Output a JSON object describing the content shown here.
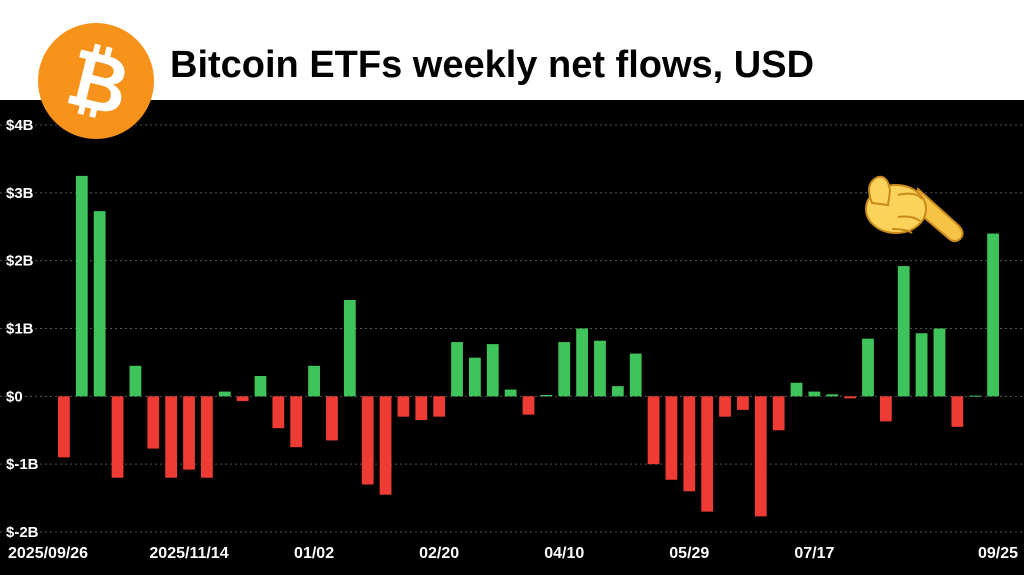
{
  "header": {
    "title": "Bitcoin ETFs weekly net flows, USD",
    "logo_icon": "bitcoin-logo-icon",
    "logo_color": "#f7931a"
  },
  "annotation": {
    "icon": "pointing-hand-emoji-icon"
  },
  "colors": {
    "positive": "#3ec45a",
    "negative": "#ee3b33",
    "background": "#000000",
    "grid": "#555555",
    "text": "#ffffff"
  },
  "chart_data": {
    "type": "bar",
    "title": "Bitcoin ETFs weekly net flows, USD",
    "xlabel": "",
    "ylabel": "",
    "ylim": [
      -2,
      4
    ],
    "yticks": [
      -2,
      -1,
      0,
      1,
      2,
      3,
      4
    ],
    "ytick_labels": [
      "$-2B",
      "$-1B",
      "$0",
      "$1B",
      "$2B",
      "$3B",
      "$4B"
    ],
    "xtick_labels": [
      "2025/09/26",
      "2025/11/14",
      "01/02",
      "02/20",
      "04/10",
      "05/29",
      "07/17",
      "09/25"
    ],
    "xtick_bar_index": [
      0,
      7,
      14,
      21,
      28,
      35,
      42,
      49
    ],
    "grid": true,
    "unit": "$B",
    "values": [
      -0.9,
      3.25,
      2.73,
      -1.2,
      0.45,
      -0.77,
      -1.2,
      -1.08,
      -1.2,
      0.07,
      -0.07,
      0.3,
      -0.47,
      -0.75,
      0.45,
      -0.65,
      1.42,
      -1.3,
      -1.45,
      -0.3,
      -0.35,
      -0.3,
      0.8,
      0.57,
      0.77,
      0.1,
      -0.27,
      0.02,
      0.8,
      1.0,
      0.82,
      0.15,
      0.63,
      -1.0,
      -1.23,
      -1.4,
      -1.7,
      -0.3,
      -0.2,
      -1.77,
      -0.5,
      0.2,
      0.07,
      0.03,
      -0.03,
      0.85,
      -0.37,
      1.92,
      0.93,
      1.0,
      -0.45,
      0.01,
      2.4
    ]
  }
}
